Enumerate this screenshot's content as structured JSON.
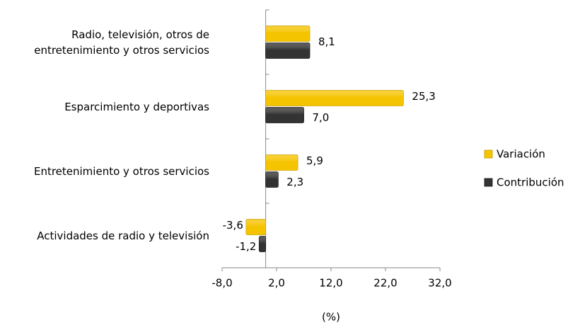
{
  "chart_data": {
    "type": "hbar",
    "categories": [
      "Radio, televisión, otros de entretenimiento y otros servicios",
      "Esparcimiento y deportivas",
      "Entretenimiento y otros servicios",
      "Actividades de radio y televisión"
    ],
    "series": [
      {
        "name": "Variación",
        "color": "#f5c400",
        "values": [
          8.1,
          25.3,
          5.9,
          -3.6
        ],
        "value_labels": [
          "8,1",
          "25,3",
          "5,9",
          "-3,6"
        ]
      },
      {
        "name": "Contribución",
        "color": "#333333",
        "values": [
          8.1,
          7.0,
          2.3,
          -1.2
        ],
        "value_labels": [
          null,
          "7,0",
          "2,3",
          "-1,2"
        ]
      }
    ],
    "x_label": "(%)",
    "xlim": [
      -8,
      32
    ],
    "xticks": [
      {
        "value": -8,
        "label": "-8,0"
      },
      {
        "value": 2,
        "label": "2,0"
      },
      {
        "value": 12,
        "label": "12,0"
      },
      {
        "value": 22,
        "label": "22,0"
      },
      {
        "value": 32,
        "label": "32,0"
      }
    ],
    "legend": "right"
  }
}
